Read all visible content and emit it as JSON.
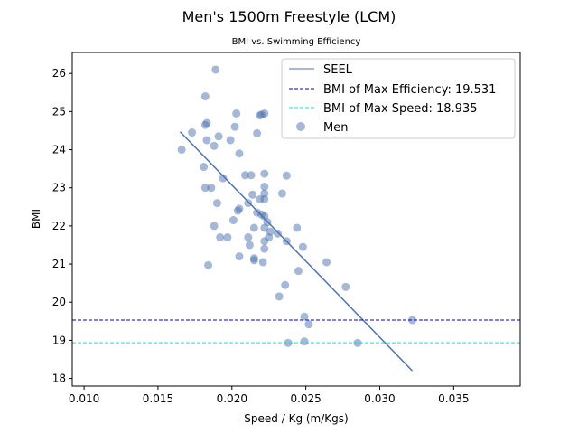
{
  "chart_data": {
    "type": "scatter",
    "title": "Men's 1500m Freestyle (LCM)",
    "subtitle": "BMI vs. Swimming Efficiency",
    "xlabel": "Speed / Kg (m/Kgs)",
    "ylabel": "BMI",
    "xlim": [
      0.0092,
      0.0395
    ],
    "ylim": [
      17.8,
      26.55
    ],
    "xticks": [
      "0.010",
      "0.015",
      "0.020",
      "0.025",
      "0.030",
      "0.035"
    ],
    "xtick_values": [
      0.01,
      0.015,
      0.02,
      0.025,
      0.03,
      0.035
    ],
    "yticks": [
      "18",
      "19",
      "20",
      "21",
      "22",
      "23",
      "24",
      "25",
      "26"
    ],
    "ytick_values": [
      18,
      19,
      20,
      21,
      22,
      23,
      24,
      25,
      26
    ],
    "grid": false,
    "legend_position": "top-right",
    "colors": {
      "points": "#4c72b0",
      "fit_line": "#4c72b0",
      "max_efficiency": "#0000cc",
      "max_speed": "#00e5ee"
    },
    "series": [
      {
        "name": "SEEL",
        "kind": "line",
        "x": [
          0.0165,
          0.0322
        ],
        "y": [
          24.47,
          18.2
        ]
      },
      {
        "name": "BMI of Max Efficiency: 19.531",
        "kind": "hline",
        "y": 19.531
      },
      {
        "name": "BMI of Max Speed: 18.935",
        "kind": "hline",
        "y": 18.935
      },
      {
        "name": "Men",
        "kind": "points",
        "x": [
          0.0189,
          0.0182,
          0.0203,
          0.0219,
          0.022,
          0.0222,
          0.0183,
          0.0182,
          0.0173,
          0.0202,
          0.0217,
          0.0191,
          0.0183,
          0.0199,
          0.0188,
          0.0166,
          0.0205,
          0.0181,
          0.0222,
          0.0237,
          0.0209,
          0.0213,
          0.0194,
          0.0222,
          0.0182,
          0.0186,
          0.0222,
          0.0234,
          0.0214,
          0.0219,
          0.0222,
          0.019,
          0.0211,
          0.0205,
          0.0204,
          0.0217,
          0.022,
          0.0222,
          0.0201,
          0.0224,
          0.0188,
          0.0244,
          0.0215,
          0.0222,
          0.0226,
          0.0231,
          0.0192,
          0.0197,
          0.0211,
          0.0225,
          0.0222,
          0.0237,
          0.0212,
          0.0248,
          0.0222,
          0.0205,
          0.0215,
          0.0215,
          0.0221,
          0.0264,
          0.0184,
          0.0245,
          0.0236,
          0.0277,
          0.0232,
          0.0249,
          0.0252,
          0.0322,
          0.0249,
          0.0238,
          0.0285
        ],
        "y": [
          26.1,
          25.4,
          24.95,
          24.9,
          24.92,
          24.95,
          24.7,
          24.65,
          24.45,
          24.6,
          24.43,
          24.35,
          24.25,
          24.25,
          24.1,
          24.0,
          23.9,
          23.55,
          23.37,
          23.32,
          23.33,
          23.33,
          23.25,
          23.03,
          23.0,
          23.0,
          22.85,
          22.85,
          22.82,
          22.7,
          22.7,
          22.6,
          22.6,
          22.45,
          22.4,
          22.35,
          22.3,
          22.25,
          22.15,
          22.1,
          22.0,
          21.95,
          21.95,
          21.95,
          21.85,
          21.8,
          21.7,
          21.7,
          21.7,
          21.7,
          21.6,
          21.6,
          21.5,
          21.45,
          21.4,
          21.2,
          21.15,
          21.1,
          21.05,
          21.05,
          20.97,
          20.82,
          20.45,
          20.4,
          20.15,
          19.62,
          19.42,
          19.53,
          18.97,
          18.93,
          18.93
        ]
      }
    ]
  }
}
